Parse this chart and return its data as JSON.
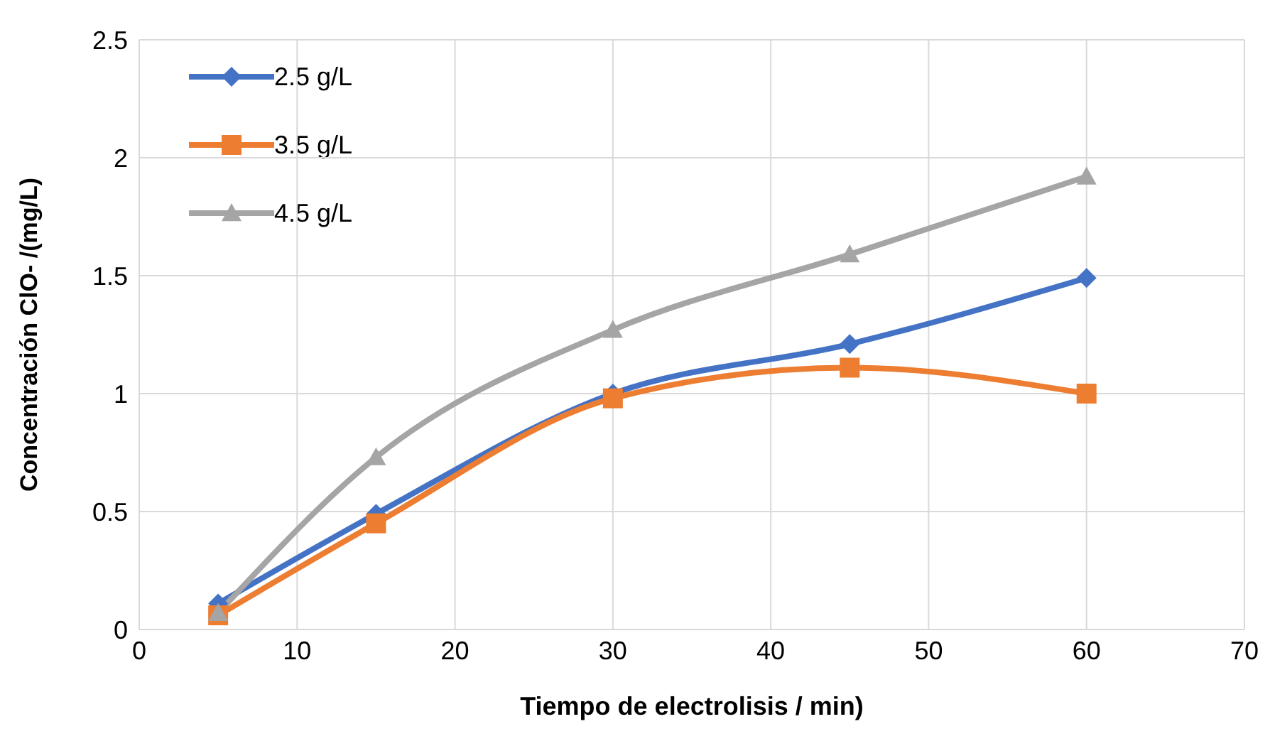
{
  "chart_data": {
    "type": "line",
    "xlabel": "Tiempo de electrolisis / min)",
    "ylabel": "Concentración ClO- /(mg/L)",
    "x": [
      5,
      15,
      30,
      45,
      60
    ],
    "series": [
      {
        "name": "2.5 g/L",
        "color": "#4472c4",
        "marker": "diamond",
        "values": [
          0.11,
          0.49,
          1.0,
          1.21,
          1.49
        ]
      },
      {
        "name": "3.5 g/L",
        "color": "#ed7d31",
        "marker": "square",
        "values": [
          0.06,
          0.45,
          0.98,
          1.11,
          1.0
        ]
      },
      {
        "name": "4.5 g/L",
        "color": "#a5a5a5",
        "marker": "triangle",
        "values": [
          0.07,
          0.73,
          1.27,
          1.59,
          1.92
        ]
      }
    ],
    "xlim": [
      0,
      70
    ],
    "xticks": [
      0,
      10,
      20,
      30,
      40,
      50,
      60,
      70
    ],
    "ylim": [
      0,
      2.5
    ],
    "yticks": [
      0,
      0.5,
      1,
      1.5,
      2,
      2.5
    ],
    "grid": true,
    "legend": "top left"
  }
}
